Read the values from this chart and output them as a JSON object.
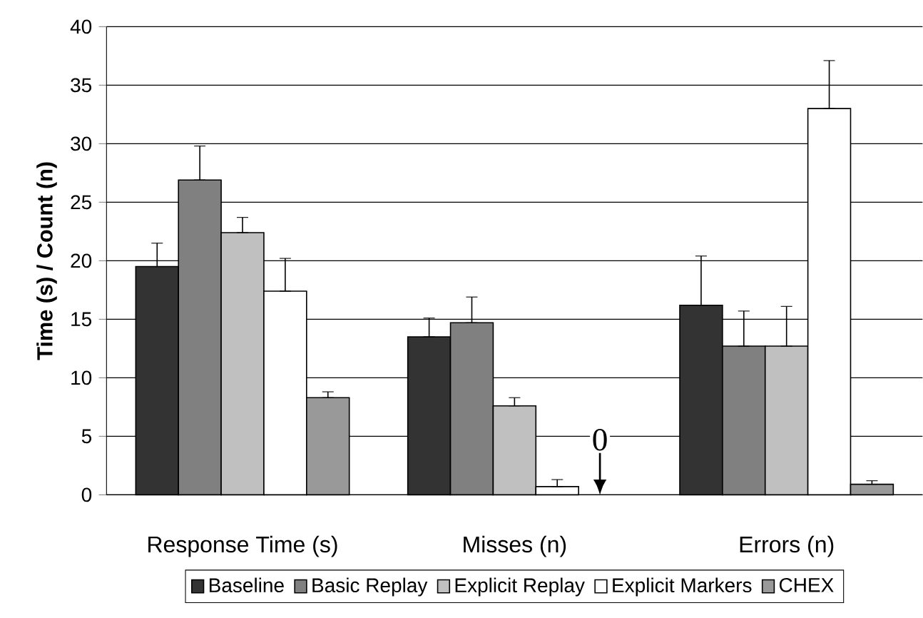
{
  "chart_data": {
    "type": "bar",
    "ylabel": "Time (s) / Count (n)",
    "categories": [
      "Response Time (s)",
      "Misses (n)",
      "Errors (n)"
    ],
    "series": [
      {
        "name": "Baseline",
        "color": "#333333",
        "values": [
          19.5,
          13.5,
          16.2
        ],
        "errors": [
          [
            19.5,
            21.5
          ],
          [
            13.5,
            15.1
          ],
          [
            16.2,
            20.4
          ]
        ]
      },
      {
        "name": "Basic Replay",
        "color": "#808080",
        "values": [
          26.9,
          14.7,
          12.7
        ],
        "errors": [
          [
            26.9,
            29.8
          ],
          [
            14.7,
            16.9
          ],
          [
            12.7,
            15.7
          ]
        ]
      },
      {
        "name": "Explicit Replay",
        "color": "#c0c0c0",
        "values": [
          22.4,
          7.6,
          12.7
        ],
        "errors": [
          [
            22.4,
            23.7
          ],
          [
            7.6,
            8.3
          ],
          [
            12.7,
            16.1
          ]
        ]
      },
      {
        "name": "Explicit Markers",
        "color": "#ffffff",
        "values": [
          17.4,
          0.7,
          33.0
        ],
        "errors": [
          [
            17.4,
            20.2
          ],
          [
            0.7,
            1.3
          ],
          [
            33.0,
            37.1
          ]
        ]
      },
      {
        "name": "CHEX",
        "color": "#999999",
        "values": [
          8.3,
          null,
          0.9
        ],
        "errors": [
          [
            8.3,
            8.8
          ],
          null,
          [
            0.9,
            1.2
          ]
        ]
      }
    ],
    "ylim": [
      0,
      40
    ],
    "yticks": [
      0,
      5,
      10,
      15,
      20,
      25,
      30,
      35,
      40
    ],
    "grid": "y",
    "legend": "bottom",
    "annotations": [
      {
        "text": "0",
        "x": "Misses (n)",
        "y": 0
      }
    ]
  }
}
